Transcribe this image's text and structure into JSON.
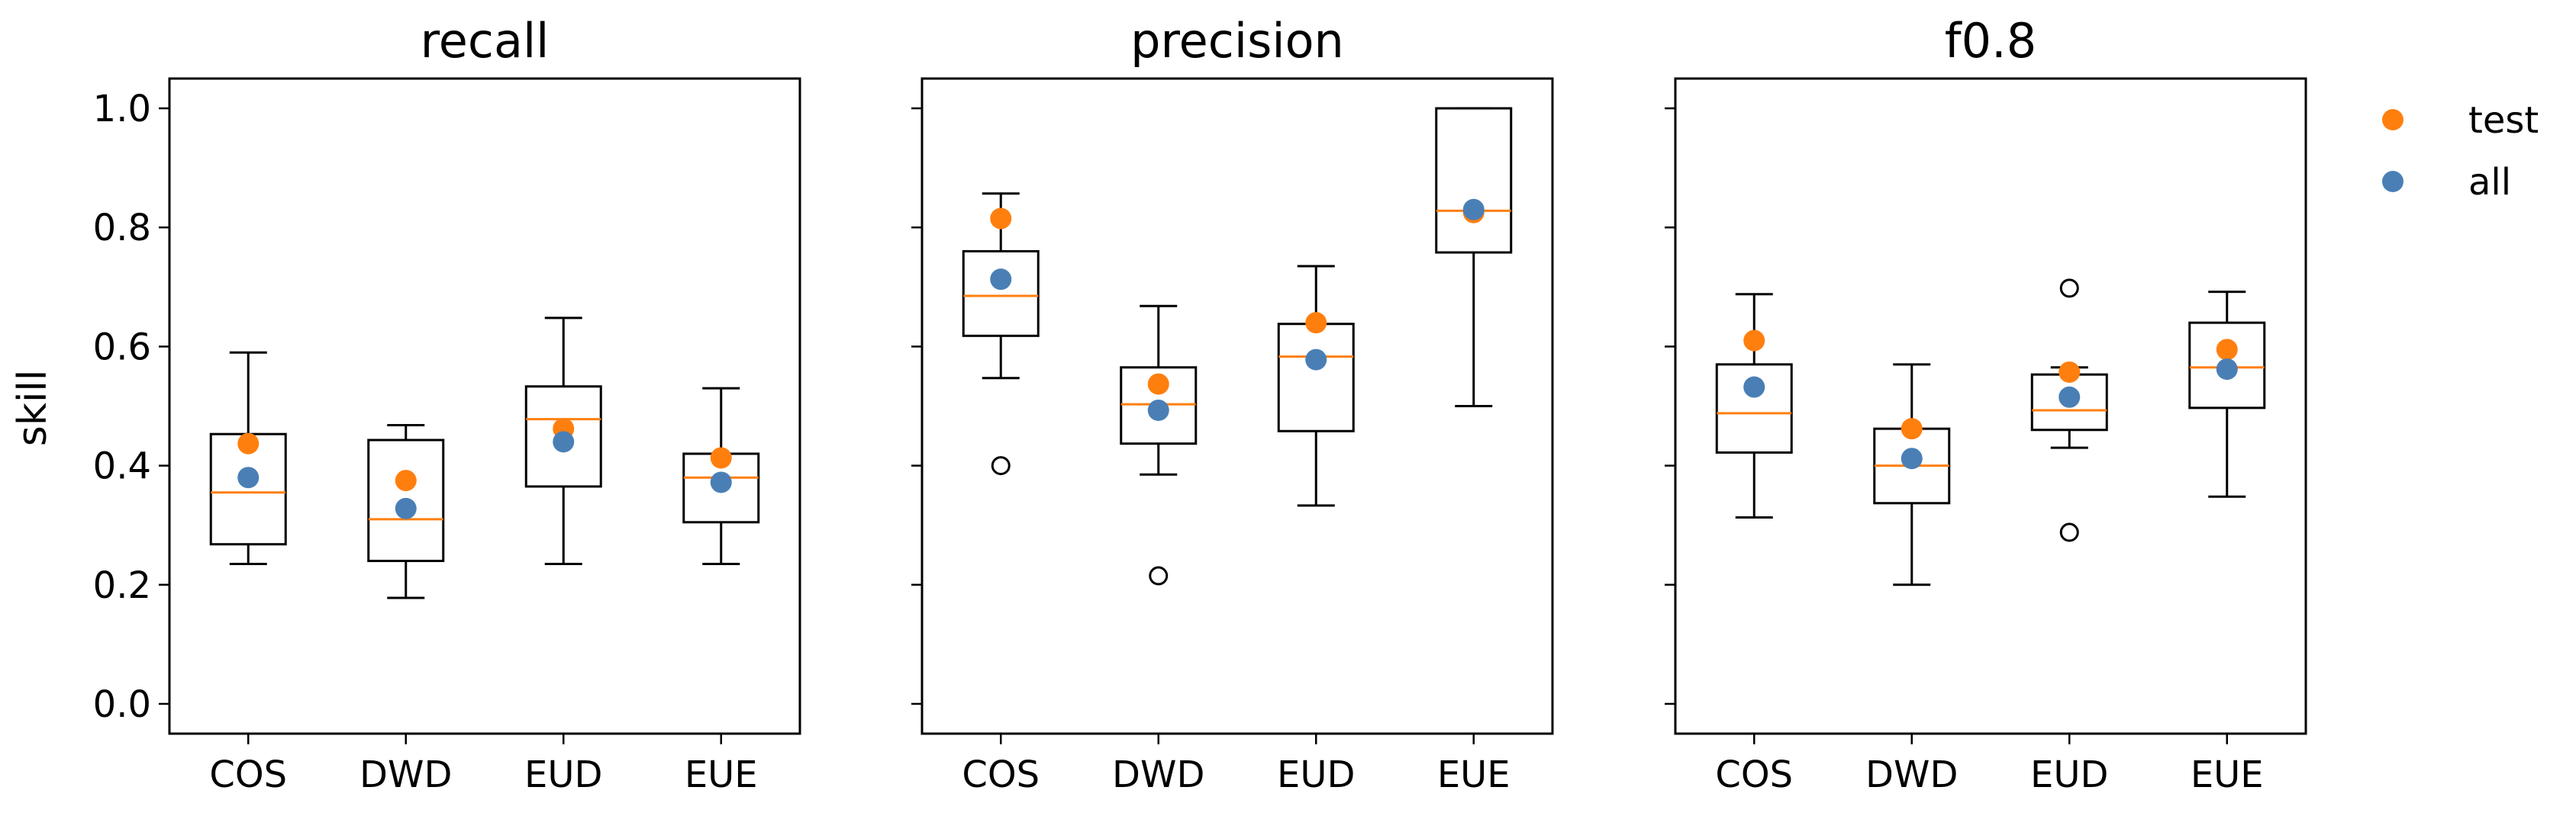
{
  "chart_data": {
    "type": "box",
    "ylabel": "skill",
    "ylim": [
      -0.05,
      1.05
    ],
    "yticks": [
      0.0,
      0.2,
      0.4,
      0.6,
      0.8,
      1.0
    ],
    "ytick_labels": [
      "0.0",
      "0.2",
      "0.4",
      "0.6",
      "0.8",
      "1.0"
    ],
    "categories": [
      "COS",
      "DWD",
      "EUD",
      "EUE"
    ],
    "box_color": "#000000",
    "median_color": "#ff7f0e",
    "legend": {
      "placement": "upper right, outside plot area",
      "entries": [
        {
          "label": "test",
          "color": "#ff7f0e"
        },
        {
          "label": "all",
          "color": "#4a7fb5"
        }
      ]
    },
    "panels": [
      {
        "title": "recall",
        "boxes": [
          {
            "category": "COS",
            "whislo": 0.235,
            "q1": 0.268,
            "med": 0.355,
            "q3": 0.453,
            "whishi": 0.59,
            "fliers": []
          },
          {
            "category": "DWD",
            "whislo": 0.178,
            "q1": 0.24,
            "med": 0.31,
            "q3": 0.443,
            "whishi": 0.468,
            "fliers": []
          },
          {
            "category": "EUD",
            "whislo": 0.235,
            "q1": 0.365,
            "med": 0.478,
            "q3": 0.533,
            "whishi": 0.648,
            "fliers": []
          },
          {
            "category": "EUE",
            "whislo": 0.235,
            "q1": 0.305,
            "med": 0.38,
            "q3": 0.42,
            "whishi": 0.53,
            "fliers": []
          }
        ],
        "points": {
          "test": [
            0.437,
            0.375,
            0.462,
            0.413
          ],
          "all": [
            0.38,
            0.328,
            0.44,
            0.372
          ]
        }
      },
      {
        "title": "precision",
        "boxes": [
          {
            "category": "COS",
            "whislo": 0.547,
            "q1": 0.618,
            "med": 0.685,
            "q3": 0.76,
            "whishi": 0.857,
            "fliers": [
              0.4
            ]
          },
          {
            "category": "DWD",
            "whislo": 0.385,
            "q1": 0.437,
            "med": 0.503,
            "q3": 0.565,
            "whishi": 0.668,
            "fliers": [
              0.215
            ]
          },
          {
            "category": "EUD",
            "whislo": 0.333,
            "q1": 0.458,
            "med": 0.583,
            "q3": 0.638,
            "whishi": 0.735,
            "fliers": []
          },
          {
            "category": "EUE",
            "whislo": 0.5,
            "q1": 0.758,
            "med": 0.828,
            "q3": 1.0,
            "whishi": 1.0,
            "fliers": []
          }
        ],
        "points": {
          "test": [
            0.815,
            0.537,
            0.64,
            0.825
          ],
          "all": [
            0.713,
            0.493,
            0.578,
            0.83
          ]
        }
      },
      {
        "title": "f0.8",
        "boxes": [
          {
            "category": "COS",
            "whislo": 0.313,
            "q1": 0.422,
            "med": 0.488,
            "q3": 0.57,
            "whishi": 0.688,
            "fliers": []
          },
          {
            "category": "DWD",
            "whislo": 0.2,
            "q1": 0.337,
            "med": 0.4,
            "q3": 0.462,
            "whishi": 0.57,
            "fliers": []
          },
          {
            "category": "EUD",
            "whislo": 0.43,
            "q1": 0.46,
            "med": 0.493,
            "q3": 0.553,
            "whishi": 0.565,
            "fliers": [
              0.698,
              0.288
            ]
          },
          {
            "category": "EUE",
            "whislo": 0.348,
            "q1": 0.497,
            "med": 0.565,
            "q3": 0.64,
            "whishi": 0.692,
            "fliers": []
          }
        ],
        "points": {
          "test": [
            0.61,
            0.462,
            0.557,
            0.595
          ],
          "all": [
            0.532,
            0.412,
            0.515,
            0.562
          ]
        }
      }
    ]
  }
}
